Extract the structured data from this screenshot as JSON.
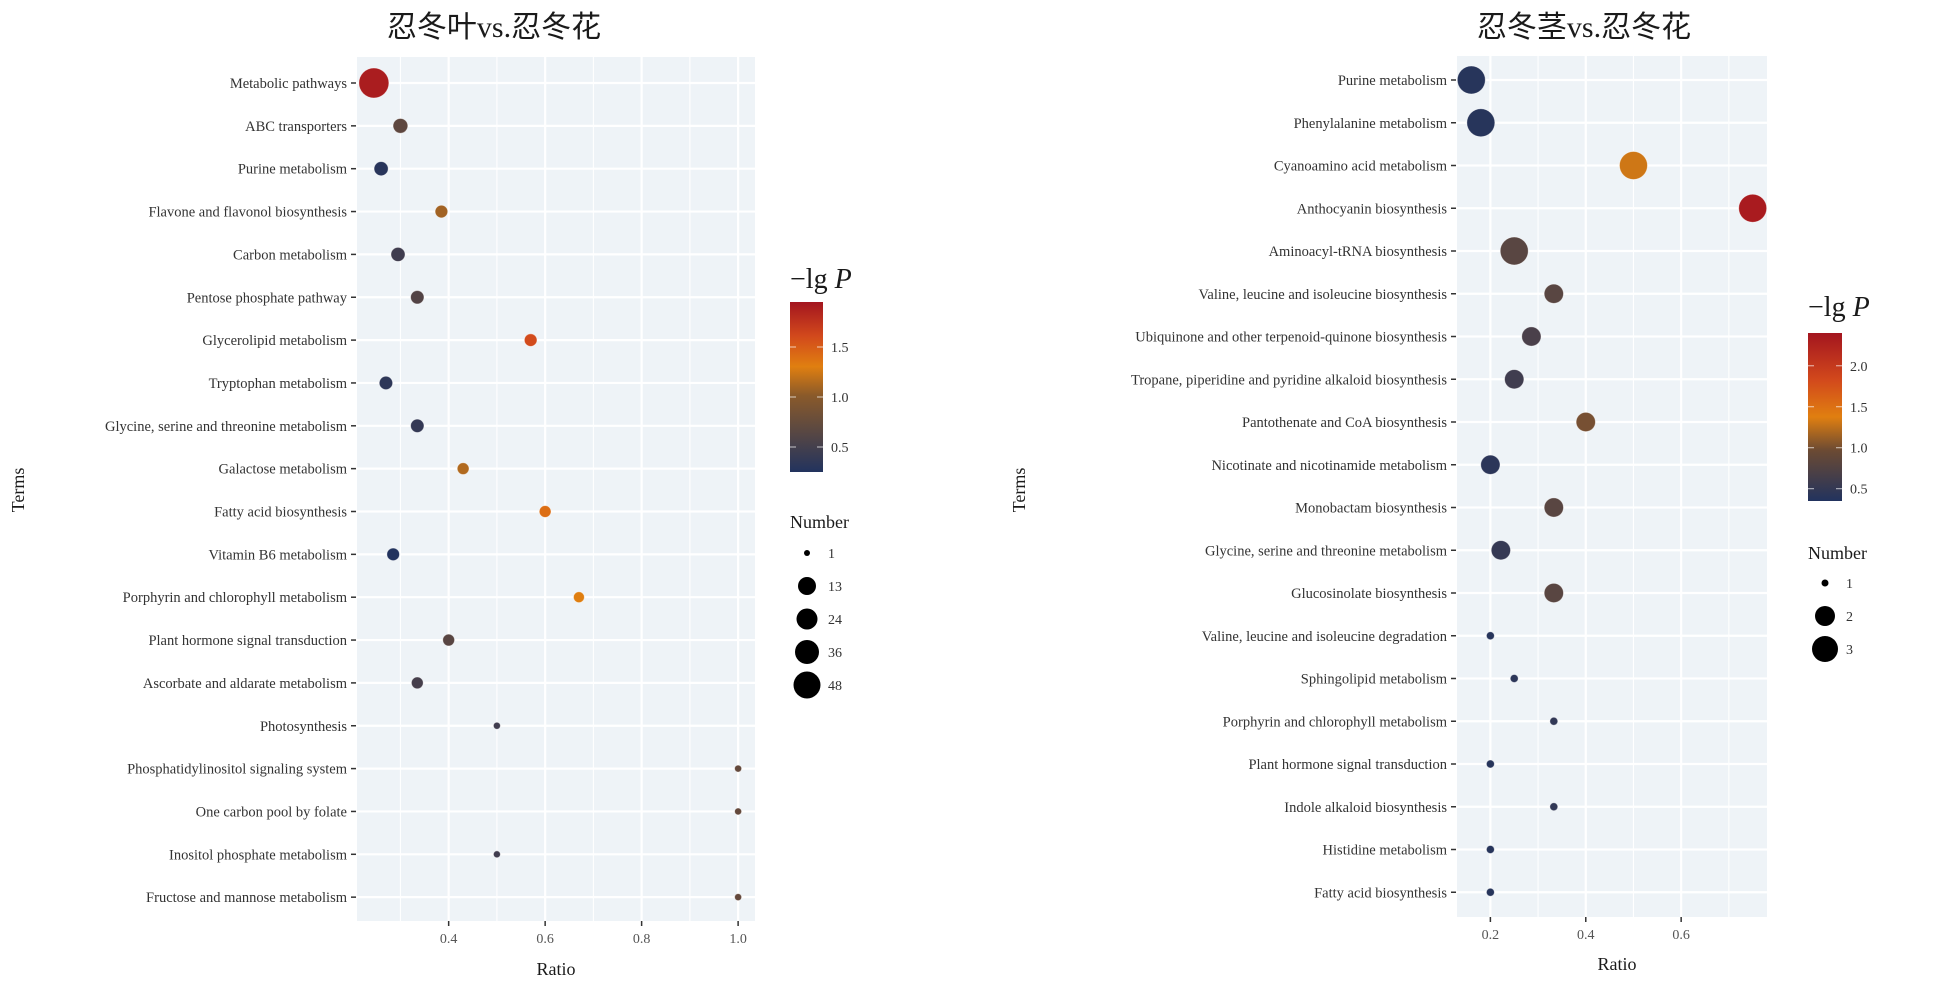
{
  "chart_data": [
    {
      "type": "scatter",
      "subtype": "bubble",
      "title": "忍冬叶vs.忍冬花",
      "xlabel": "Ratio",
      "ylabel": "Terms",
      "xlim": [
        0.21,
        1.035
      ],
      "xticks": [
        0.4,
        0.6,
        0.8,
        1.0
      ],
      "xtick_labels": [
        "0.4",
        "0.6",
        "0.8",
        "1.0"
      ],
      "grid": true,
      "color_legend": {
        "title": "−lg P",
        "title_prefix": "−lg ",
        "title_var": "P",
        "range": [
          0.25,
          1.95
        ],
        "ticks": [
          0.5,
          1.0,
          1.5
        ],
        "tick_labels": [
          "0.5",
          "1.0",
          "1.5"
        ],
        "colors": [
          "#22335e",
          "#e07f10",
          "#a3151f"
        ]
      },
      "size_legend": {
        "title": "Number",
        "values": [
          1,
          13,
          24,
          36,
          48
        ],
        "labels": [
          "1",
          "13",
          "24",
          "36",
          "48"
        ]
      },
      "legend_position": "right",
      "points": [
        {
          "term": "Metabolic pathways",
          "ratio": 0.245,
          "neglgP": 1.9,
          "number": 48
        },
        {
          "term": "ABC transporters",
          "ratio": 0.3,
          "neglgP": 0.75,
          "number": 9
        },
        {
          "term": "Purine metabolism",
          "ratio": 0.26,
          "neglgP": 0.3,
          "number": 8
        },
        {
          "term": "Flavone and flavonol biosynthesis",
          "ratio": 0.385,
          "neglgP": 1.1,
          "number": 6
        },
        {
          "term": "Carbon metabolism",
          "ratio": 0.295,
          "neglgP": 0.5,
          "number": 8
        },
        {
          "term": "Pentose phosphate pathway",
          "ratio": 0.335,
          "neglgP": 0.65,
          "number": 7
        },
        {
          "term": "Glycerolipid metabolism",
          "ratio": 0.57,
          "neglgP": 1.6,
          "number": 6
        },
        {
          "term": "Tryptophan metabolism",
          "ratio": 0.27,
          "neglgP": 0.35,
          "number": 7
        },
        {
          "term": "Glycine, serine and threonine metabolism",
          "ratio": 0.335,
          "neglgP": 0.4,
          "number": 7
        },
        {
          "term": "Galactose metabolism",
          "ratio": 0.43,
          "neglgP": 1.15,
          "number": 5
        },
        {
          "term": "Fatty acid biosynthesis",
          "ratio": 0.6,
          "neglgP": 1.4,
          "number": 5
        },
        {
          "term": "Vitamin B6 metabolism",
          "ratio": 0.285,
          "neglgP": 0.25,
          "number": 6
        },
        {
          "term": "Porphyrin and chlorophyll metabolism",
          "ratio": 0.67,
          "neglgP": 1.3,
          "number": 4
        },
        {
          "term": "Plant hormone signal transduction",
          "ratio": 0.4,
          "neglgP": 0.7,
          "number": 5
        },
        {
          "term": "Ascorbate and aldarate metabolism",
          "ratio": 0.335,
          "neglgP": 0.55,
          "number": 5
        },
        {
          "term": "Photosynthesis",
          "ratio": 0.5,
          "neglgP": 0.5,
          "number": 1
        },
        {
          "term": "Phosphatidylinositol signaling system",
          "ratio": 1.0,
          "neglgP": 0.8,
          "number": 1
        },
        {
          "term": "One carbon pool by folate",
          "ratio": 1.0,
          "neglgP": 0.8,
          "number": 1
        },
        {
          "term": "Inositol phosphate metabolism",
          "ratio": 0.5,
          "neglgP": 0.5,
          "number": 1
        },
        {
          "term": "Fructose and mannose metabolism",
          "ratio": 1.0,
          "neglgP": 0.8,
          "number": 1
        }
      ]
    },
    {
      "type": "scatter",
      "subtype": "bubble",
      "title": "忍冬茎vs.忍冬花",
      "xlabel": "Ratio",
      "ylabel": "Terms",
      "xlim": [
        0.13,
        0.78
      ],
      "xticks": [
        0.2,
        0.4,
        0.6
      ],
      "xtick_labels": [
        "0.2",
        "0.4",
        "0.6"
      ],
      "grid": true,
      "color_legend": {
        "title": "−lg P",
        "title_prefix": "−lg ",
        "title_var": "P",
        "range": [
          0.35,
          2.4
        ],
        "ticks": [
          0.5,
          1.0,
          1.5,
          2.0
        ],
        "tick_labels": [
          "0.5",
          "1.0",
          "1.5",
          "2.0"
        ],
        "colors": [
          "#22335e",
          "#e07f10",
          "#a3151f"
        ]
      },
      "size_legend": {
        "title": "Number",
        "values": [
          1,
          2,
          3
        ],
        "labels": [
          "1",
          "2",
          "3"
        ]
      },
      "legend_position": "right",
      "points": [
        {
          "term": "Purine metabolism",
          "ratio": 0.16,
          "neglgP": 0.4,
          "number": 3
        },
        {
          "term": "Phenylalanine metabolism",
          "ratio": 0.18,
          "neglgP": 0.4,
          "number": 3
        },
        {
          "term": "Cyanoamino acid metabolism",
          "ratio": 0.5,
          "neglgP": 1.55,
          "number": 3
        },
        {
          "term": "Anthocyanin biosynthesis",
          "ratio": 0.75,
          "neglgP": 2.35,
          "number": 3
        },
        {
          "term": "Aminoacyl-tRNA biosynthesis",
          "ratio": 0.25,
          "neglgP": 0.9,
          "number": 3
        },
        {
          "term": "Valine, leucine and isoleucine biosynthesis",
          "ratio": 0.333,
          "neglgP": 0.9,
          "number": 2
        },
        {
          "term": "Ubiquinone and other terpenoid-quinone biosynthesis",
          "ratio": 0.286,
          "neglgP": 0.75,
          "number": 2
        },
        {
          "term": "Tropane, piperidine and pyridine alkaloid biosynthesis",
          "ratio": 0.25,
          "neglgP": 0.65,
          "number": 2
        },
        {
          "term": "Pantothenate and CoA biosynthesis",
          "ratio": 0.4,
          "neglgP": 1.2,
          "number": 2
        },
        {
          "term": "Nicotinate and nicotinamide metabolism",
          "ratio": 0.2,
          "neglgP": 0.45,
          "number": 2
        },
        {
          "term": "Monobactam biosynthesis",
          "ratio": 0.333,
          "neglgP": 0.9,
          "number": 2
        },
        {
          "term": "Glycine, serine and threonine metabolism",
          "ratio": 0.222,
          "neglgP": 0.55,
          "number": 2
        },
        {
          "term": "Glucosinolate biosynthesis",
          "ratio": 0.333,
          "neglgP": 0.9,
          "number": 2
        },
        {
          "term": "Valine, leucine and isoleucine degradation",
          "ratio": 0.2,
          "neglgP": 0.4,
          "number": 1
        },
        {
          "term": "Sphingolipid metabolism",
          "ratio": 0.25,
          "neglgP": 0.45,
          "number": 1
        },
        {
          "term": "Porphyrin and chlorophyll metabolism",
          "ratio": 0.333,
          "neglgP": 0.5,
          "number": 1
        },
        {
          "term": "Plant hormone signal transduction",
          "ratio": 0.2,
          "neglgP": 0.4,
          "number": 1
        },
        {
          "term": "Indole alkaloid biosynthesis",
          "ratio": 0.333,
          "neglgP": 0.5,
          "number": 1
        },
        {
          "term": "Histidine metabolism",
          "ratio": 0.2,
          "neglgP": 0.4,
          "number": 1
        },
        {
          "term": "Fatty acid biosynthesis",
          "ratio": 0.2,
          "neglgP": 0.4,
          "number": 1
        }
      ]
    }
  ]
}
